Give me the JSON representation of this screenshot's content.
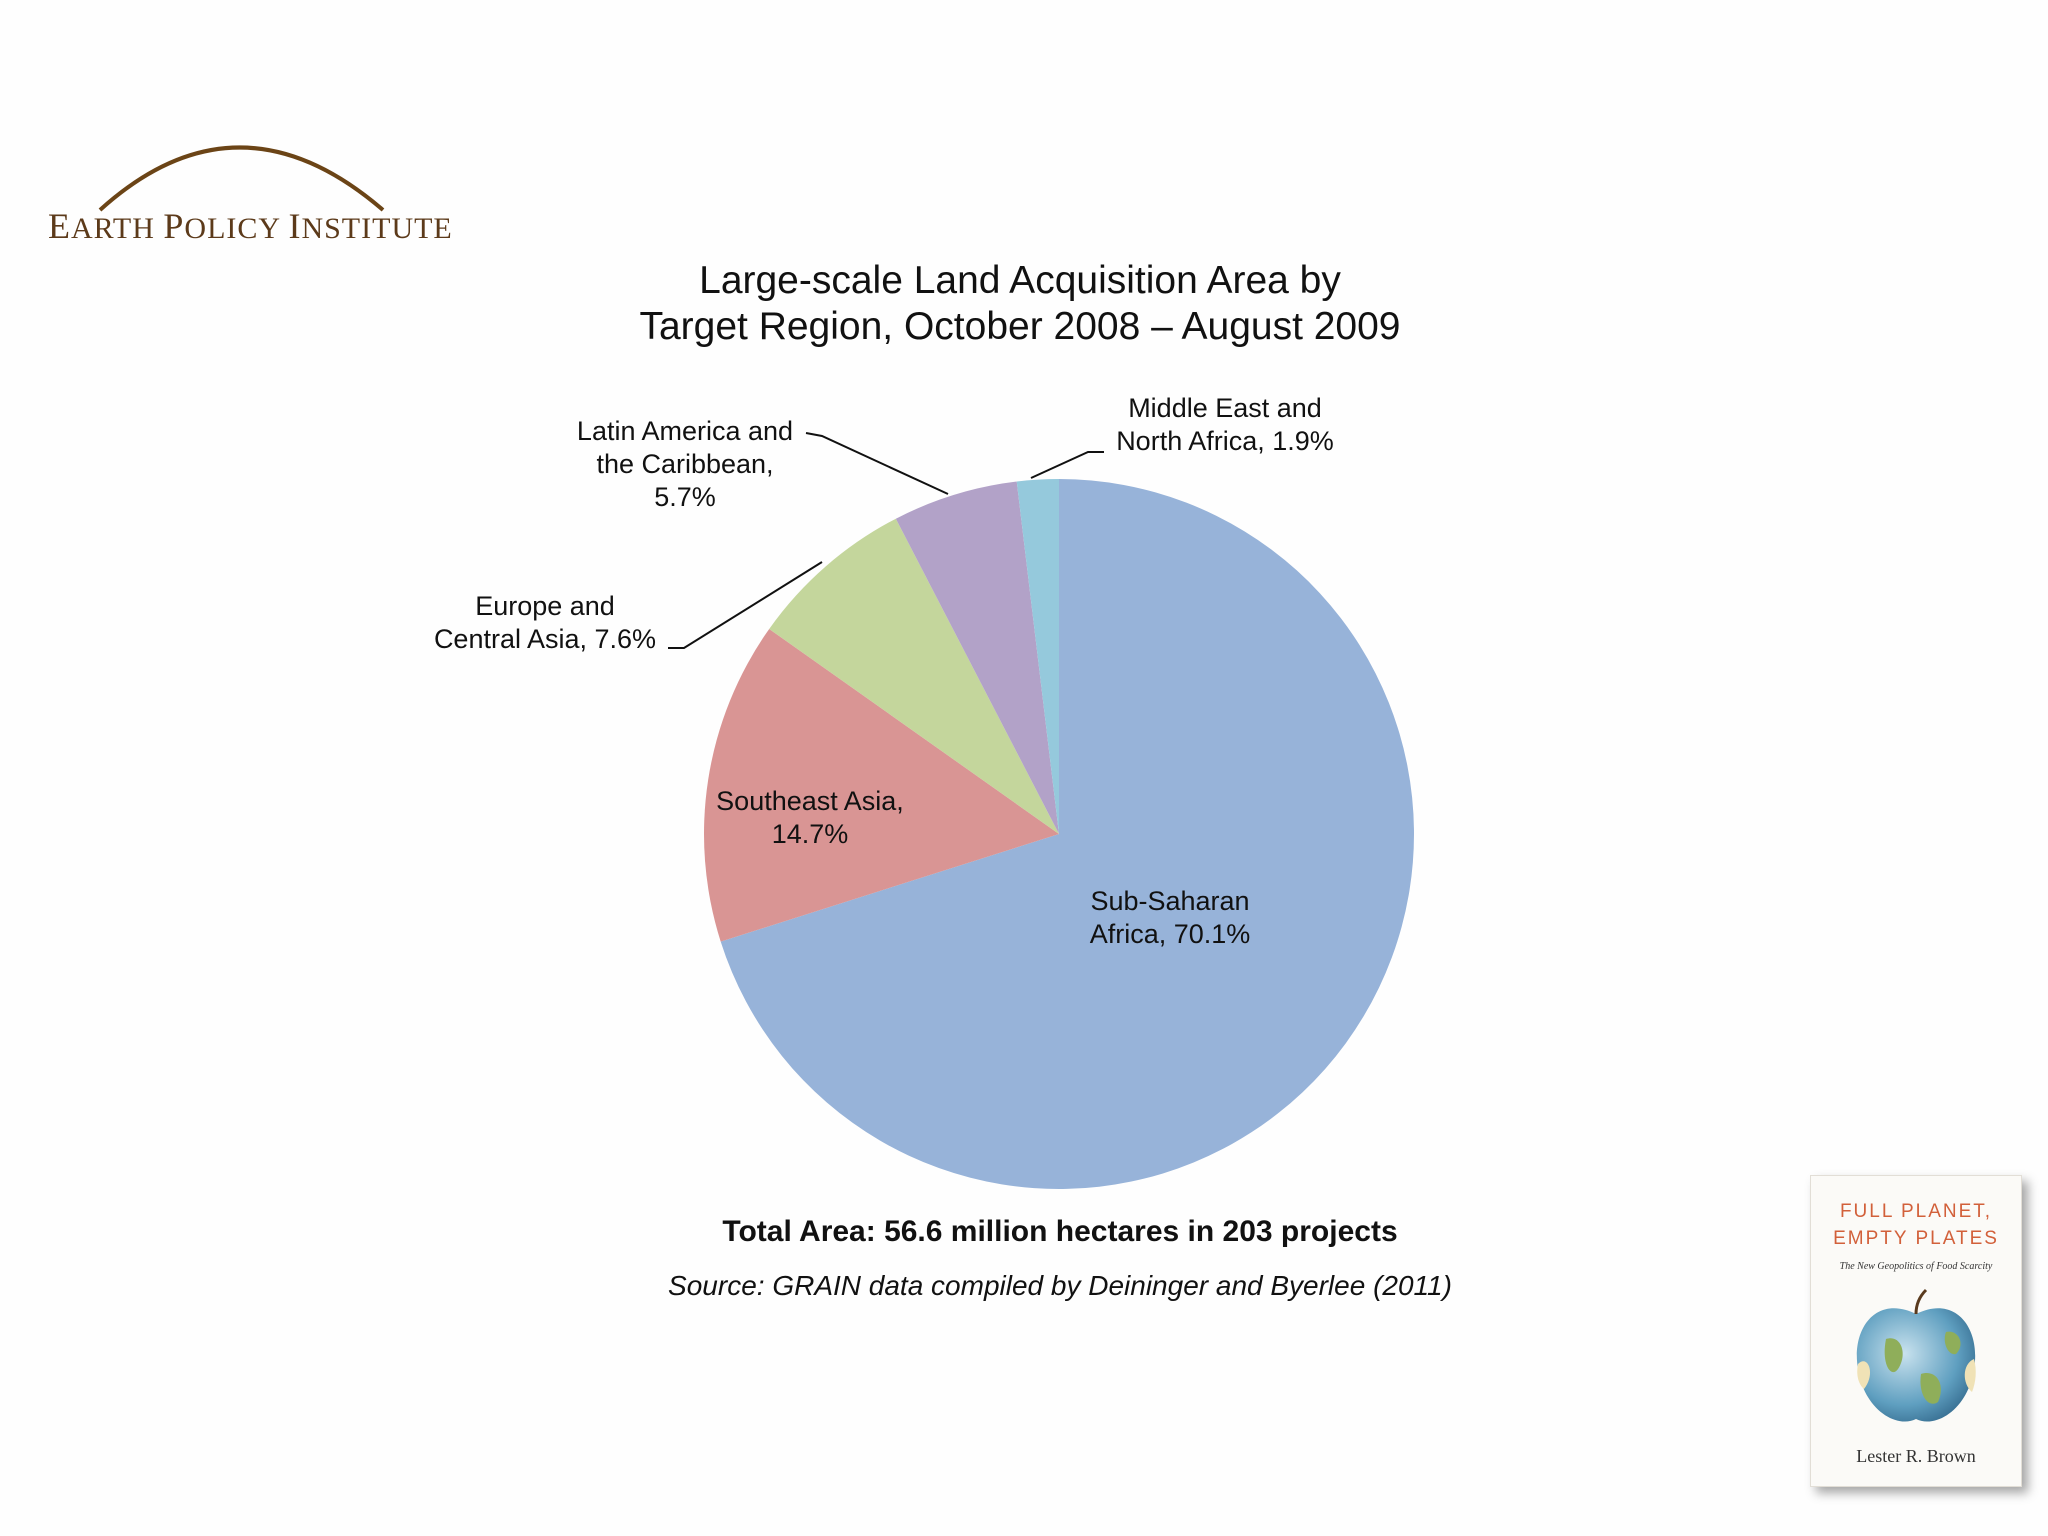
{
  "logo": {
    "text_parts": [
      {
        "big": "E",
        "rest": "ARTH "
      },
      {
        "big": "P",
        "rest": "OLICY "
      },
      {
        "big": "I",
        "rest": "NSTITUTE"
      }
    ],
    "arc_color": "#6b4416"
  },
  "chart_data": {
    "type": "pie",
    "title": "Large-scale Land Acquisition Area by Target Region, October 2008 – August 2009",
    "title_lines": [
      "Large-scale Land Acquisition Area by",
      "Target Region, October 2008 – August 2009"
    ],
    "categories": [
      "Sub-Saharan Africa",
      "Southeast Asia",
      "Europe and Central Asia",
      "Latin America and the Caribbean",
      "Middle East and North Africa"
    ],
    "values": [
      70.1,
      14.7,
      7.6,
      5.7,
      1.9
    ],
    "unit": "%",
    "colors": [
      "#97b3d9",
      "#d99594",
      "#c4d69c",
      "#b2a2c8",
      "#95c9dc"
    ],
    "labels": [
      {
        "lines": [
          "Sub-Saharan",
          "Africa, 70.1%"
        ]
      },
      {
        "lines": [
          "Southeast Asia,",
          "14.7%"
        ]
      },
      {
        "lines": [
          "Europe and",
          "Central Asia, 7.6%"
        ]
      },
      {
        "lines": [
          "Latin America and",
          "the Caribbean,",
          "5.7%"
        ]
      },
      {
        "lines": [
          "Middle East and",
          "North Africa, 1.9%"
        ]
      }
    ],
    "start_angle_deg": 0,
    "direction": "clockwise",
    "legend": "none"
  },
  "footer": {
    "total": "Total Area: 56.6 million hectares in 203 projects",
    "source": "Source: GRAIN data compiled by Deininger and Byerlee (2011)"
  },
  "book": {
    "title_lines": [
      "FULL PLANET,",
      "EMPTY PLATES"
    ],
    "subtitle": "The New Geopolitics of Food Scarcity",
    "author": "Lester R. Brown",
    "title_color": "#d2603a"
  }
}
